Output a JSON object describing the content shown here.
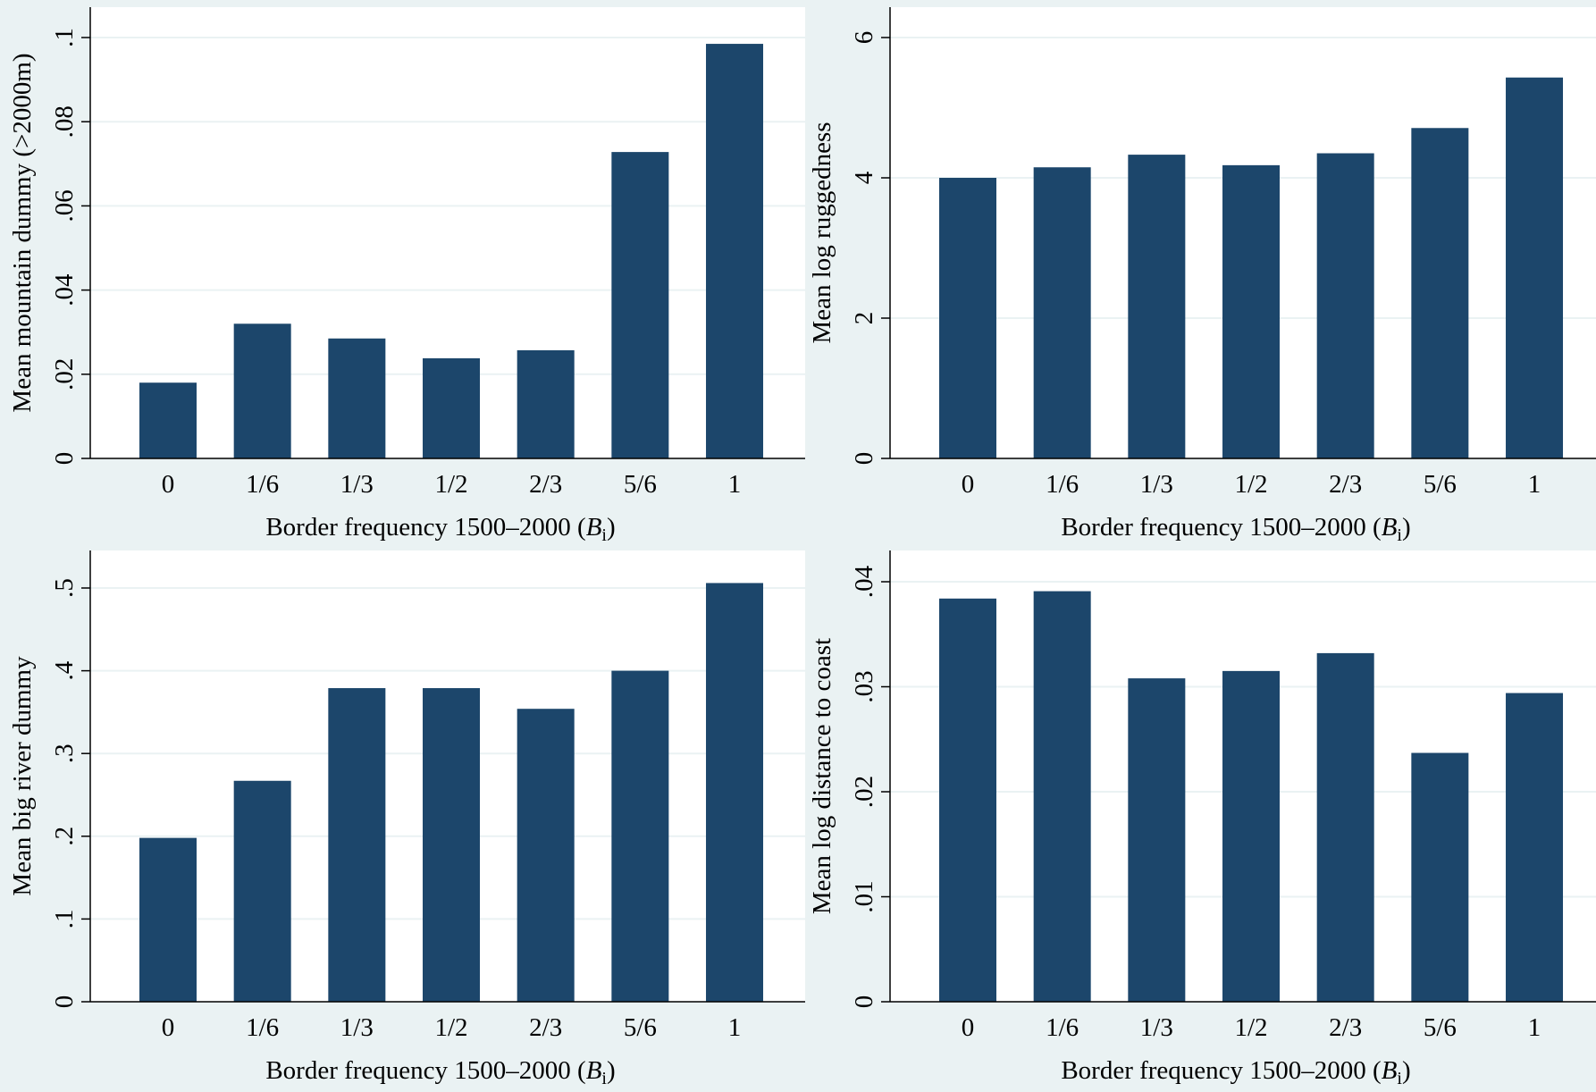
{
  "colors": {
    "bar": "#1c466b",
    "plot_bg": "#ffffff",
    "outer_bg": "#eaf2f3",
    "grid": "#eaf2f3",
    "axis": "#000000"
  },
  "chart_data": [
    {
      "type": "bar",
      "categories": [
        "0",
        "1/6",
        "1/3",
        "1/2",
        "2/3",
        "5/6",
        "1"
      ],
      "values": [
        0.018,
        0.032,
        0.0285,
        0.0238,
        0.0257,
        0.0728,
        0.0985
      ],
      "xlabel": {
        "main": "Border frequency 1500–2000 (",
        "var": "B",
        "sub": "i",
        "close": ")"
      },
      "ylabel": "Mean mountain dummy (>2000m)",
      "ylim": [
        0,
        0.1
      ],
      "yticks": [
        0,
        0.02,
        0.04,
        0.06,
        0.08,
        0.1
      ],
      "ytick_labels": [
        "0",
        ".02",
        ".04",
        ".06",
        ".08",
        ".1"
      ],
      "grid": true
    },
    {
      "type": "bar",
      "categories": [
        "0",
        "1/6",
        "1/3",
        "1/2",
        "2/3",
        "5/6",
        "1"
      ],
      "values": [
        4.0,
        4.15,
        4.33,
        4.18,
        4.35,
        4.71,
        5.43
      ],
      "xlabel": {
        "main": "Border frequency 1500–2000 (",
        "var": "B",
        "sub": "i",
        "close": ")"
      },
      "ylabel": "Mean log ruggedness",
      "ylim": [
        0,
        6
      ],
      "yticks": [
        0,
        2,
        4,
        6
      ],
      "ytick_labels": [
        "0",
        "2",
        "4",
        "6"
      ],
      "grid": true
    },
    {
      "type": "bar",
      "categories": [
        "0",
        "1/6",
        "1/3",
        "1/2",
        "2/3",
        "5/6",
        "1"
      ],
      "values": [
        0.198,
        0.267,
        0.379,
        0.379,
        0.354,
        0.4,
        0.506
      ],
      "xlabel": {
        "main": "Border frequency 1500–2000 (",
        "var": "B",
        "sub": "i",
        "close": ")"
      },
      "ylabel": "Mean big river dummy",
      "ylim": [
        0,
        0.5
      ],
      "yticks": [
        0,
        0.1,
        0.2,
        0.3,
        0.4,
        0.5
      ],
      "ytick_labels": [
        "0",
        ".1",
        ".2",
        ".3",
        ".4",
        ".5"
      ],
      "grid": true
    },
    {
      "type": "bar",
      "categories": [
        "0",
        "1/6",
        "1/3",
        "1/2",
        "2/3",
        "5/6",
        "1"
      ],
      "values": [
        0.0384,
        0.0391,
        0.0308,
        0.0315,
        0.0332,
        0.0237,
        0.0294
      ],
      "xlabel": {
        "main": "Border frequency 1500–2000 (",
        "var": "B",
        "sub": "i",
        "close": ")"
      },
      "ylabel": "Mean log distance to coast",
      "ylim": [
        0,
        0.04
      ],
      "yticks": [
        0,
        0.01,
        0.02,
        0.03,
        0.04
      ],
      "ytick_labels": [
        "0",
        ".01",
        ".02",
        ".03",
        ".04"
      ],
      "grid": true
    }
  ]
}
